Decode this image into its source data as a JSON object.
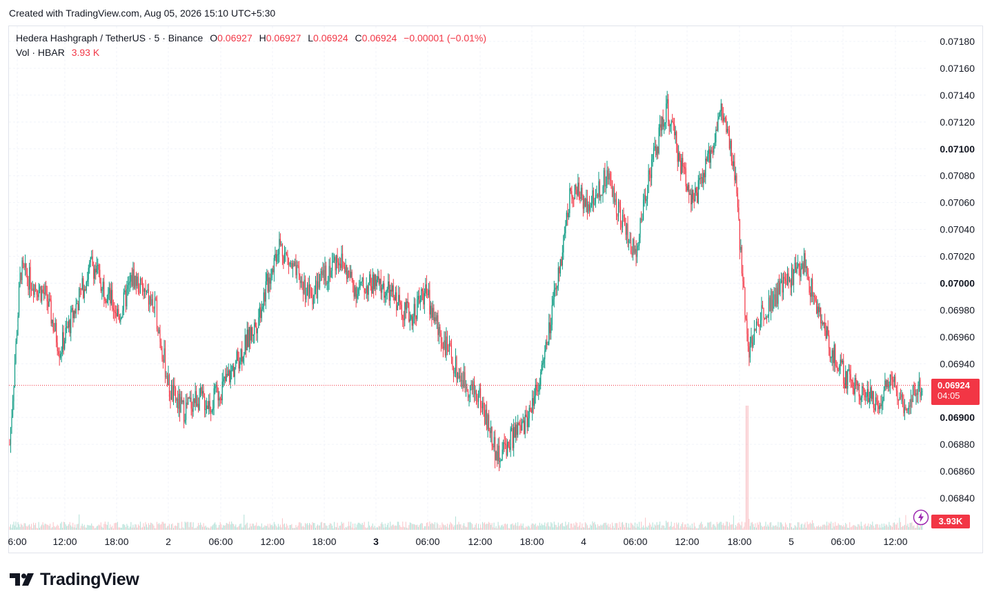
{
  "header": {
    "created_text": "Created with TradingView.com, Aug 05, 2026 15:10 UTC+5:30"
  },
  "legend": {
    "symbol": "Hedera Hashgraph / TetherUS · 5 · Binance",
    "open_label": "O",
    "open": "0.06927",
    "high_label": "H",
    "high": "0.06927",
    "low_label": "L",
    "low": "0.06924",
    "close_label": "C",
    "close": "0.06924",
    "change": "−0.00001 (−0.01%)",
    "vol_label": "Vol · HBAR",
    "vol_value": "3.93 K"
  },
  "price_tag": {
    "price": "0.06924",
    "countdown": "04:05"
  },
  "vol_tag": "3.93K",
  "logo_text": "TradingView",
  "colors": {
    "up": "#089981",
    "down": "#f23645",
    "grid": "#f0f3fa",
    "text": "#131722"
  },
  "chart_data": {
    "type": "candlestick",
    "y_axis": {
      "min": 0.0683,
      "max": 0.0719,
      "ticks": [
        "0.07180",
        "0.07160",
        "0.07140",
        "0.07120",
        "0.07100",
        "0.07080",
        "0.07060",
        "0.07040",
        "0.07020",
        "0.07000",
        "0.06980",
        "0.06960",
        "0.06940",
        "0.06900",
        "0.06880",
        "0.06860",
        "0.06840"
      ],
      "bold_ticks": [
        "0.07100",
        "0.07000",
        "0.06900"
      ]
    },
    "x_axis": {
      "labels": [
        "6:00",
        "12:00",
        "18:00",
        "2",
        "06:00",
        "12:00",
        "18:00",
        "3",
        "06:00",
        "12:00",
        "18:00",
        "4",
        "06:00",
        "12:00",
        "18:00",
        "5",
        "06:00",
        "12:00"
      ],
      "bold_labels": [
        "3"
      ]
    },
    "last_price": 0.06924,
    "price_path": [
      [
        0,
        0.0688
      ],
      [
        0.012,
        0.0701
      ],
      [
        0.04,
        0.0699
      ],
      [
        0.055,
        0.0695
      ],
      [
        0.09,
        0.07015
      ],
      [
        0.12,
        0.06975
      ],
      [
        0.135,
        0.07005
      ],
      [
        0.16,
        0.0698
      ],
      [
        0.175,
        0.0692
      ],
      [
        0.19,
        0.06905
      ],
      [
        0.205,
        0.06915
      ],
      [
        0.22,
        0.0691
      ],
      [
        0.24,
        0.0693
      ],
      [
        0.27,
        0.0697
      ],
      [
        0.295,
        0.0703
      ],
      [
        0.31,
        0.0701
      ],
      [
        0.33,
        0.0699
      ],
      [
        0.345,
        0.07005
      ],
      [
        0.36,
        0.0702
      ],
      [
        0.38,
        0.06995
      ],
      [
        0.4,
        0.07
      ],
      [
        0.42,
        0.0699
      ],
      [
        0.44,
        0.06975
      ],
      [
        0.455,
        0.06995
      ],
      [
        0.47,
        0.06965
      ],
      [
        0.49,
        0.06935
      ],
      [
        0.5,
        0.06925
      ],
      [
        0.515,
        0.06915
      ],
      [
        0.535,
        0.0687
      ],
      [
        0.55,
        0.06885
      ],
      [
        0.565,
        0.06895
      ],
      [
        0.585,
        0.0694
      ],
      [
        0.6,
        0.07
      ],
      [
        0.615,
        0.0707
      ],
      [
        0.635,
        0.0706
      ],
      [
        0.655,
        0.0708
      ],
      [
        0.67,
        0.0705
      ],
      [
        0.685,
        0.0702
      ],
      [
        0.7,
        0.0708
      ],
      [
        0.72,
        0.0713
      ],
      [
        0.735,
        0.0709
      ],
      [
        0.75,
        0.0706
      ],
      [
        0.765,
        0.0709
      ],
      [
        0.78,
        0.0713
      ],
      [
        0.795,
        0.0708
      ],
      [
        0.8,
        0.0703
      ],
      [
        0.81,
        0.0695
      ],
      [
        0.825,
        0.0698
      ],
      [
        0.85,
        0.07
      ],
      [
        0.87,
        0.07015
      ],
      [
        0.885,
        0.0698
      ],
      [
        0.9,
        0.0695
      ],
      [
        0.915,
        0.0693
      ],
      [
        0.935,
        0.0692
      ],
      [
        0.95,
        0.0691
      ],
      [
        0.965,
        0.0693
      ],
      [
        0.98,
        0.0691
      ],
      [
        1.0,
        0.06924
      ]
    ]
  }
}
